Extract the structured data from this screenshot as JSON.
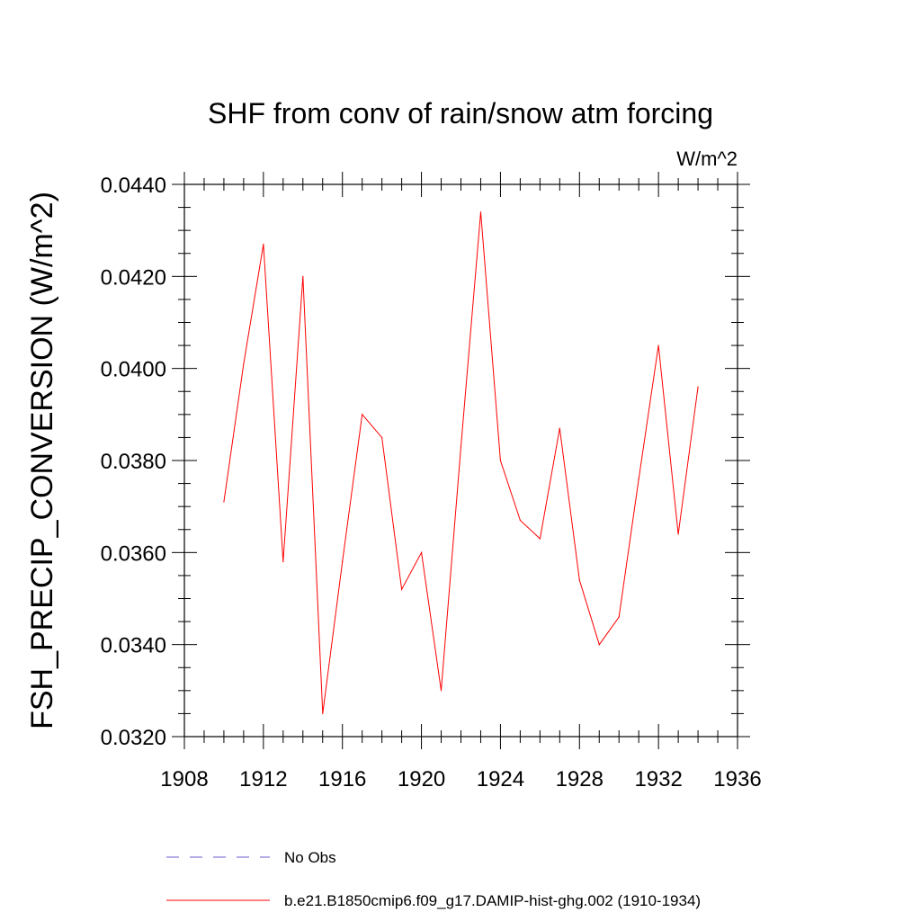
{
  "chart_data": {
    "type": "line",
    "title": "SHF from conv of rain/snow atm forcing",
    "units_label": "W/m^2",
    "xlabel": "",
    "ylabel": "FSH_PRECIP_CONVERSION  (W/m^2)",
    "xlim": [
      1908,
      1936
    ],
    "ylim": [
      0.032,
      0.044
    ],
    "x_ticks": [
      "1908",
      "1912",
      "1916",
      "1920",
      "1924",
      "1928",
      "1932",
      "1936"
    ],
    "y_ticks": [
      "0.0320",
      "0.0340",
      "0.0360",
      "0.0380",
      "0.0400",
      "0.0420",
      "0.0440"
    ],
    "legend": [
      {
        "name": "No Obs",
        "color": "#6a5acd",
        "dash": "dashed"
      },
      {
        "name": "b.e21.B1850cmip6.f09_g17.DAMIP-hist-ghg.002 (1910-1934)",
        "color": "#ff0000",
        "dash": "solid"
      }
    ],
    "series": [
      {
        "name": "b.e21.B1850cmip6.f09_g17.DAMIP-hist-ghg.002 (1910-1934)",
        "color": "#ff0000",
        "x": [
          1910,
          1911,
          1912,
          1913,
          1914,
          1915,
          1916,
          1917,
          1918,
          1919,
          1920,
          1921,
          1922,
          1923,
          1924,
          1925,
          1926,
          1927,
          1928,
          1929,
          1930,
          1931,
          1932,
          1933,
          1934
        ],
        "values": [
          0.0371,
          0.0401,
          0.0427,
          0.0358,
          0.042,
          0.0325,
          0.0358,
          0.039,
          0.0385,
          0.0352,
          0.036,
          0.033,
          0.0383,
          0.0434,
          0.038,
          0.0367,
          0.0363,
          0.0387,
          0.0354,
          0.034,
          0.0346,
          0.0376,
          0.0405,
          0.0364,
          0.0396
        ]
      }
    ],
    "grid": false
  }
}
